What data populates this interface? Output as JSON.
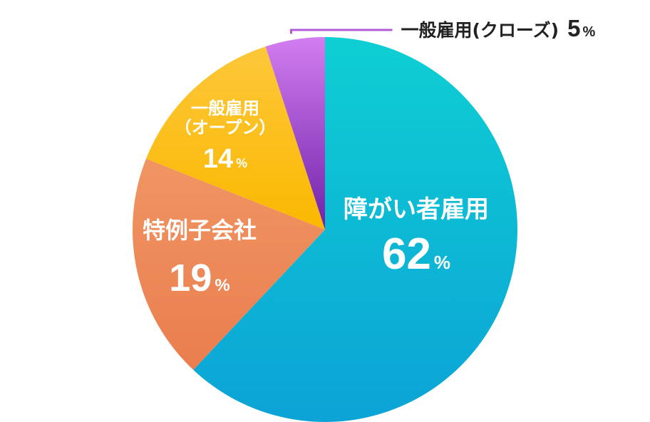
{
  "chart_data": {
    "type": "pie",
    "start_angle_deg": 0,
    "direction": "clockwise",
    "slices": [
      {
        "key": "disabled-employment",
        "name_lines": [
          "障がい者雇用"
        ],
        "value": 62,
        "value_label": "62",
        "unit": "%",
        "label_position": "inside",
        "color_start": "#0ecfd3",
        "color_end": "#0ca3d6"
      },
      {
        "key": "special-subsidiary",
        "name_lines": [
          "特例子会社"
        ],
        "value": 19,
        "value_label": "19",
        "unit": "%",
        "label_position": "inside",
        "color_start": "#f09563",
        "color_end": "#ea7d4e"
      },
      {
        "key": "general-open",
        "name_lines": [
          "一般雇用",
          "（オープン）"
        ],
        "value": 14,
        "value_label": "14",
        "unit": "%",
        "label_position": "inside",
        "color_start": "#fcc73a",
        "color_end": "#fbb800"
      },
      {
        "key": "general-closed",
        "name_lines": [
          "一般雇用(クローズ)"
        ],
        "value": 5,
        "value_label": "5",
        "unit": "%",
        "label_position": "outside-top-right",
        "color_start": "#d27df0",
        "color_end": "#6f22a8"
      }
    ],
    "leader_line_color": "#b05cd6"
  }
}
